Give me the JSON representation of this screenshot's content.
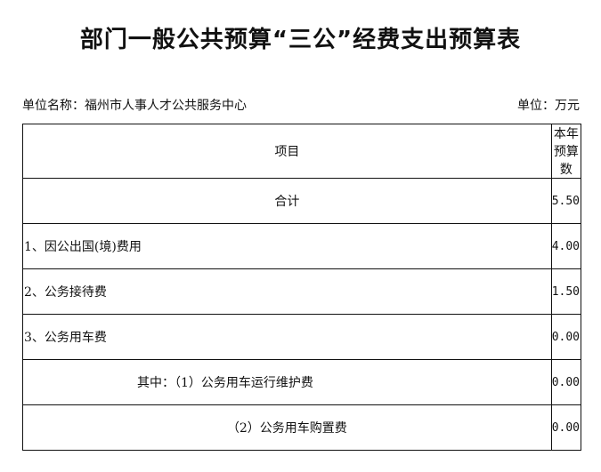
{
  "title": "部门一般公共预算“三公”经费支出预算表",
  "unit_name": "单位名称：福州市人事人才公共服务中心",
  "unit": "单位：万元",
  "table": {
    "headers": [
      "项目",
      "本年预算数"
    ],
    "rows": [
      {
        "item": "合计",
        "value": "5.50"
      },
      {
        "item": "1、因公出国(境)费用",
        "value": "4.00"
      },
      {
        "item": "2、公务接待费",
        "value": "1.50"
      },
      {
        "item": "3、公务用车费",
        "value": "0.00"
      },
      {
        "item": "其中：（1）公务用车运行维护费",
        "value": "0.00"
      },
      {
        "item": "（2）公务用车购置费",
        "value": "0.00"
      }
    ]
  }
}
